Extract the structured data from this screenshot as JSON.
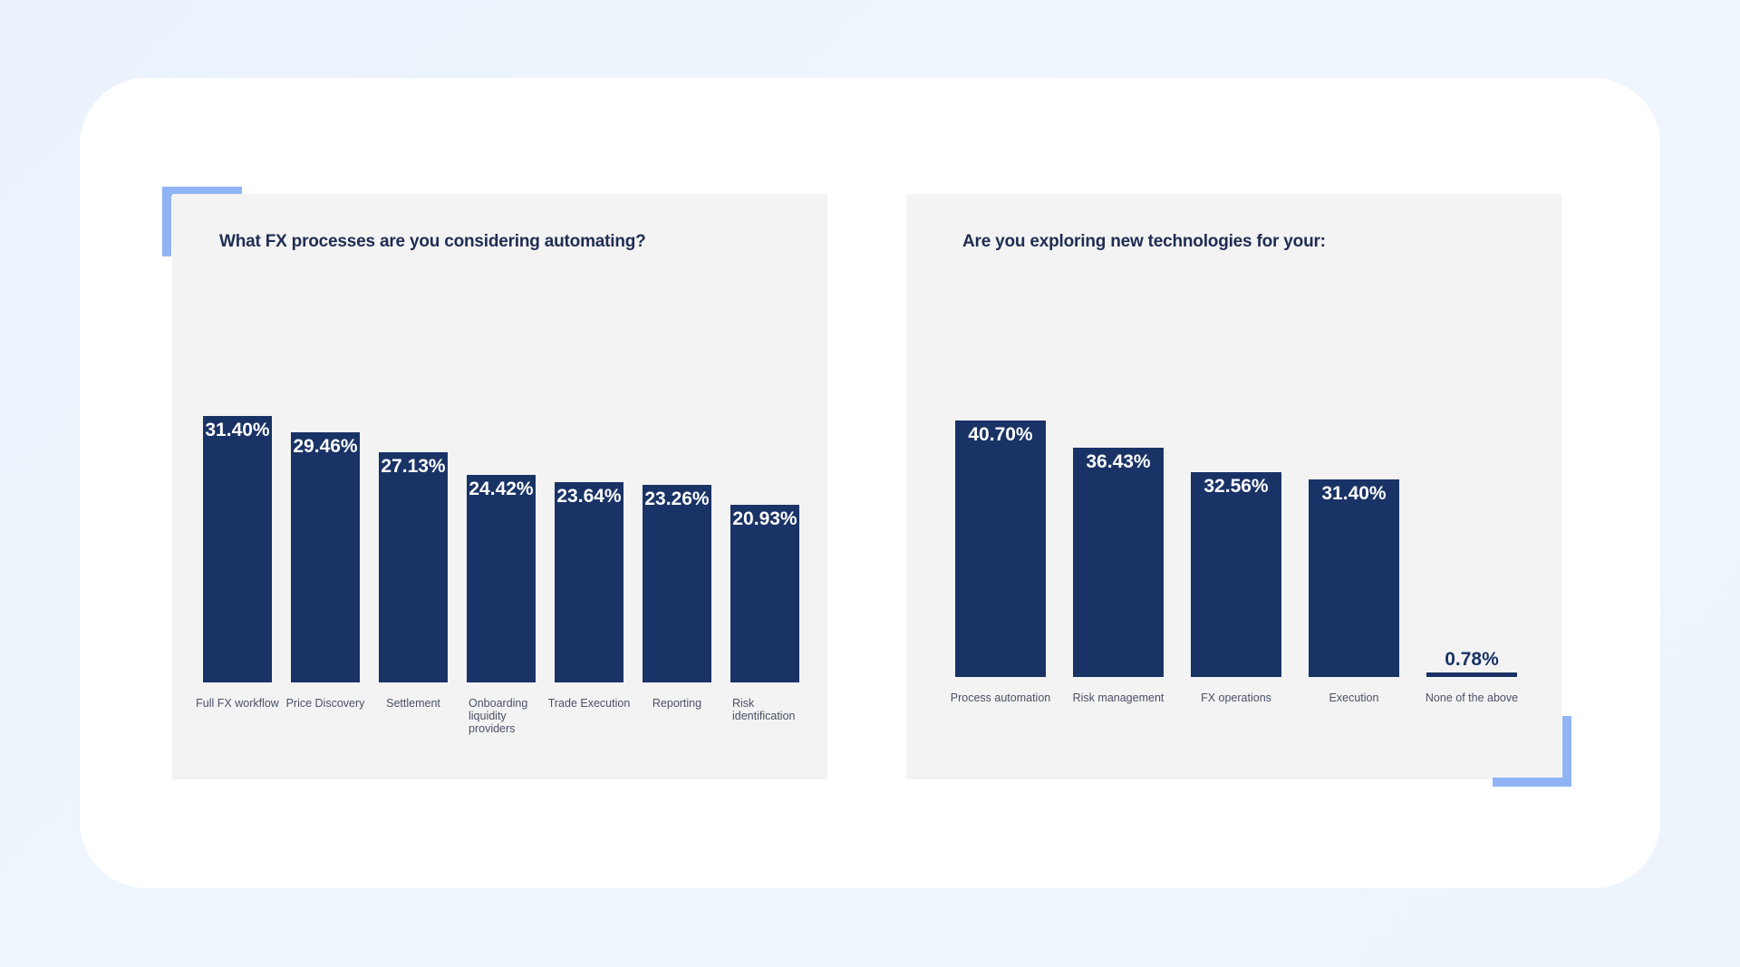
{
  "colors": {
    "bar": "#1a3366",
    "accent": "#8fb3f5",
    "panel": "#f3f3f3",
    "title": "#1f2d52"
  },
  "chart_data": [
    {
      "type": "bar",
      "title": "What FX processes are you considering automating?",
      "categories": [
        "Full FX workflow",
        "Price Discovery",
        "Settlement",
        "Onboarding liquidity providers",
        "Trade Execution",
        "Reporting",
        "Risk identification"
      ],
      "values": [
        31.4,
        29.46,
        27.13,
        24.42,
        23.64,
        23.26,
        20.93
      ],
      "labels": [
        "31.40%",
        "29.46%",
        "27.13%",
        "24.42%",
        "23.64%",
        "23.26%",
        "20.93%"
      ],
      "unit": "%",
      "grid": false,
      "legend": "none"
    },
    {
      "type": "bar",
      "title": "Are you exploring new technologies for your:",
      "categories": [
        "Process automation",
        "Risk management",
        "FX operations",
        "Execution",
        "None of the above"
      ],
      "values": [
        40.7,
        36.43,
        32.56,
        31.4,
        0.78
      ],
      "labels": [
        "40.70%",
        "36.43%",
        "32.56%",
        "31.40%",
        "0.78%"
      ],
      "unit": "%",
      "grid": false,
      "legend": "none"
    }
  ]
}
